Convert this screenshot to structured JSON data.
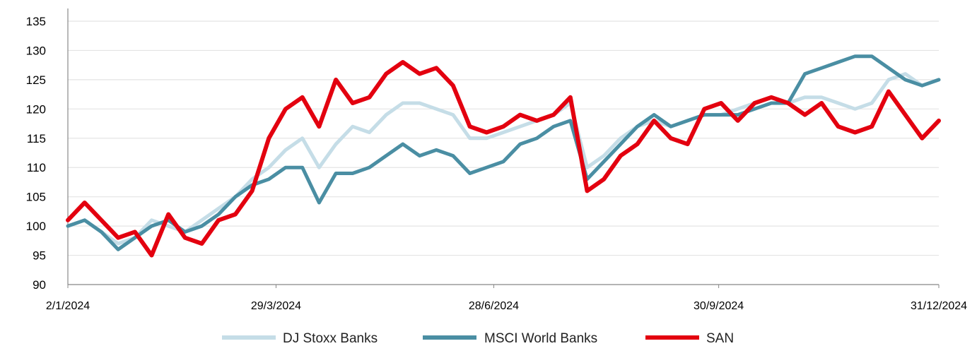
{
  "chart_data": {
    "type": "line",
    "title": "",
    "xlabel": "",
    "ylabel": "",
    "ylim": [
      90,
      135
    ],
    "yticks": [
      90,
      95,
      100,
      105,
      110,
      115,
      120,
      125,
      130,
      135
    ],
    "x_ticks": [
      "2/1/2024",
      "29/3/2024",
      "28/6/2024",
      "30/9/2024",
      "31/12/2024"
    ],
    "grid": "horizontal",
    "legend_position": "bottom",
    "series": [
      {
        "name": "DJ Stoxx Banks",
        "color": "#c5dde7",
        "points": [
          [
            "2/1/2024",
            100
          ],
          [
            "9/1/2024",
            101
          ],
          [
            "16/1/2024",
            99
          ],
          [
            "23/1/2024",
            97
          ],
          [
            "30/1/2024",
            98
          ],
          [
            "6/2/2024",
            101
          ],
          [
            "13/2/2024",
            100
          ],
          [
            "20/2/2024",
            99
          ],
          [
            "27/2/2024",
            101
          ],
          [
            "5/3/2024",
            103
          ],
          [
            "12/3/2024",
            105
          ],
          [
            "19/3/2024",
            108
          ],
          [
            "26/3/2024",
            110
          ],
          [
            "2/4/2024",
            113
          ],
          [
            "9/4/2024",
            115
          ],
          [
            "16/4/2024",
            110
          ],
          [
            "23/4/2024",
            114
          ],
          [
            "30/4/2024",
            117
          ],
          [
            "7/5/2024",
            116
          ],
          [
            "14/5/2024",
            119
          ],
          [
            "21/5/2024",
            121
          ],
          [
            "28/5/2024",
            121
          ],
          [
            "4/6/2024",
            120
          ],
          [
            "11/6/2024",
            119
          ],
          [
            "18/6/2024",
            115
          ],
          [
            "25/6/2024",
            115
          ],
          [
            "2/7/2024",
            116
          ],
          [
            "9/7/2024",
            117
          ],
          [
            "16/7/2024",
            118
          ],
          [
            "23/7/2024",
            119
          ],
          [
            "30/7/2024",
            121
          ],
          [
            "6/8/2024",
            110
          ],
          [
            "13/8/2024",
            112
          ],
          [
            "20/8/2024",
            115
          ],
          [
            "27/8/2024",
            117
          ],
          [
            "3/9/2024",
            118
          ],
          [
            "10/9/2024",
            117
          ],
          [
            "17/9/2024",
            118
          ],
          [
            "24/9/2024",
            119
          ],
          [
            "1/10/2024",
            119
          ],
          [
            "8/10/2024",
            120
          ],
          [
            "15/10/2024",
            121
          ],
          [
            "22/10/2024",
            122
          ],
          [
            "29/10/2024",
            121
          ],
          [
            "5/11/2024",
            122
          ],
          [
            "12/11/2024",
            122
          ],
          [
            "19/11/2024",
            121
          ],
          [
            "26/11/2024",
            120
          ],
          [
            "3/12/2024",
            121
          ],
          [
            "10/12/2024",
            125
          ],
          [
            "17/12/2024",
            126
          ],
          [
            "24/12/2024",
            124
          ],
          [
            "31/12/2024",
            125
          ]
        ]
      },
      {
        "name": "MSCI World Banks",
        "color": "#4a8ea3",
        "points": [
          [
            "2/1/2024",
            100
          ],
          [
            "9/1/2024",
            101
          ],
          [
            "16/1/2024",
            99
          ],
          [
            "23/1/2024",
            96
          ],
          [
            "30/1/2024",
            98
          ],
          [
            "6/2/2024",
            100
          ],
          [
            "13/2/2024",
            101
          ],
          [
            "20/2/2024",
            99
          ],
          [
            "27/2/2024",
            100
          ],
          [
            "5/3/2024",
            102
          ],
          [
            "12/3/2024",
            105
          ],
          [
            "19/3/2024",
            107
          ],
          [
            "26/3/2024",
            108
          ],
          [
            "2/4/2024",
            110
          ],
          [
            "9/4/2024",
            110
          ],
          [
            "16/4/2024",
            104
          ],
          [
            "23/4/2024",
            109
          ],
          [
            "30/4/2024",
            109
          ],
          [
            "7/5/2024",
            110
          ],
          [
            "14/5/2024",
            112
          ],
          [
            "21/5/2024",
            114
          ],
          [
            "28/5/2024",
            112
          ],
          [
            "4/6/2024",
            113
          ],
          [
            "11/6/2024",
            112
          ],
          [
            "18/6/2024",
            109
          ],
          [
            "25/6/2024",
            110
          ],
          [
            "2/7/2024",
            111
          ],
          [
            "9/7/2024",
            114
          ],
          [
            "16/7/2024",
            115
          ],
          [
            "23/7/2024",
            117
          ],
          [
            "30/7/2024",
            118
          ],
          [
            "6/8/2024",
            108
          ],
          [
            "13/8/2024",
            111
          ],
          [
            "20/8/2024",
            114
          ],
          [
            "27/8/2024",
            117
          ],
          [
            "3/9/2024",
            119
          ],
          [
            "10/9/2024",
            117
          ],
          [
            "17/9/2024",
            118
          ],
          [
            "24/9/2024",
            119
          ],
          [
            "1/10/2024",
            119
          ],
          [
            "8/10/2024",
            119
          ],
          [
            "15/10/2024",
            120
          ],
          [
            "22/10/2024",
            121
          ],
          [
            "29/10/2024",
            121
          ],
          [
            "5/11/2024",
            126
          ],
          [
            "12/11/2024",
            127
          ],
          [
            "19/11/2024",
            128
          ],
          [
            "26/11/2024",
            129
          ],
          [
            "3/12/2024",
            129
          ],
          [
            "10/12/2024",
            127
          ],
          [
            "17/12/2024",
            125
          ],
          [
            "24/12/2024",
            124
          ],
          [
            "31/12/2024",
            125
          ]
        ]
      },
      {
        "name": "SAN",
        "color": "#e3000f",
        "points": [
          [
            "2/1/2024",
            101
          ],
          [
            "9/1/2024",
            104
          ],
          [
            "16/1/2024",
            101
          ],
          [
            "23/1/2024",
            98
          ],
          [
            "30/1/2024",
            99
          ],
          [
            "6/2/2024",
            95
          ],
          [
            "13/2/2024",
            102
          ],
          [
            "20/2/2024",
            98
          ],
          [
            "27/2/2024",
            97
          ],
          [
            "5/3/2024",
            101
          ],
          [
            "12/3/2024",
            102
          ],
          [
            "19/3/2024",
            106
          ],
          [
            "26/3/2024",
            115
          ],
          [
            "2/4/2024",
            120
          ],
          [
            "9/4/2024",
            122
          ],
          [
            "16/4/2024",
            117
          ],
          [
            "23/4/2024",
            125
          ],
          [
            "30/4/2024",
            121
          ],
          [
            "7/5/2024",
            122
          ],
          [
            "14/5/2024",
            126
          ],
          [
            "21/5/2024",
            128
          ],
          [
            "28/5/2024",
            126
          ],
          [
            "4/6/2024",
            127
          ],
          [
            "11/6/2024",
            124
          ],
          [
            "18/6/2024",
            117
          ],
          [
            "25/6/2024",
            116
          ],
          [
            "2/7/2024",
            117
          ],
          [
            "9/7/2024",
            119
          ],
          [
            "16/7/2024",
            118
          ],
          [
            "23/7/2024",
            119
          ],
          [
            "30/7/2024",
            122
          ],
          [
            "6/8/2024",
            106
          ],
          [
            "13/8/2024",
            108
          ],
          [
            "20/8/2024",
            112
          ],
          [
            "27/8/2024",
            114
          ],
          [
            "3/9/2024",
            118
          ],
          [
            "10/9/2024",
            115
          ],
          [
            "17/9/2024",
            114
          ],
          [
            "24/9/2024",
            120
          ],
          [
            "1/10/2024",
            121
          ],
          [
            "8/10/2024",
            118
          ],
          [
            "15/10/2024",
            121
          ],
          [
            "22/10/2024",
            122
          ],
          [
            "29/10/2024",
            121
          ],
          [
            "5/11/2024",
            119
          ],
          [
            "12/11/2024",
            121
          ],
          [
            "19/11/2024",
            117
          ],
          [
            "26/11/2024",
            116
          ],
          [
            "3/12/2024",
            117
          ],
          [
            "10/12/2024",
            123
          ],
          [
            "17/12/2024",
            119
          ],
          [
            "24/12/2024",
            115
          ],
          [
            "31/12/2024",
            118
          ]
        ]
      }
    ]
  }
}
